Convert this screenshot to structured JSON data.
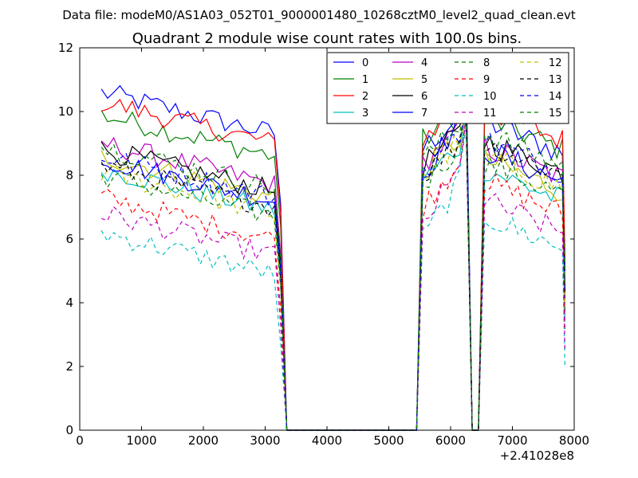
{
  "chart_data": {
    "type": "line",
    "suptitle": "Data file: modeM0/AS1A03_052T01_9000001480_10268cztM0_level2_quad_clean.evt",
    "title": "Quadrant 2 module wise count rates with 100.0s bins.",
    "xlabel": "",
    "ylabel": "",
    "x_offset_label": "+2.41028e8",
    "xlim": [
      0,
      8000
    ],
    "ylim": [
      0,
      12
    ],
    "xticks": [
      0,
      1000,
      2000,
      3000,
      4000,
      5000,
      6000,
      7000,
      8000
    ],
    "yticks": [
      0,
      2,
      4,
      6,
      8,
      10,
      12
    ],
    "grid": false,
    "legend": {
      "position": "top-right",
      "columns": 4
    },
    "segments": [
      {
        "name": "orbit-1",
        "x_start": 350,
        "n": 29,
        "x_step": 100,
        "trailing": [
          [
            3350,
            0.0
          ]
        ]
      },
      {
        "name": "gap-1",
        "points": [
          [
            3450,
            0.0
          ],
          [
            5450,
            0.0
          ]
        ]
      },
      {
        "name": "orbit-2",
        "x_start": 5550,
        "n": 8,
        "x_step": 100,
        "trailing": [
          [
            6350,
            0.0
          ]
        ],
        "leading": [
          [
            5450,
            0.0
          ]
        ]
      },
      {
        "name": "gap-2",
        "points": [
          [
            6450,
            0.0
          ]
        ]
      },
      {
        "name": "orbit-3",
        "x_start": 6450,
        "n": 15,
        "x_step": 100,
        "leading": [
          [
            6450,
            0.0
          ]
        ]
      }
    ],
    "series": [
      {
        "name": "0",
        "color": "#0000ff",
        "dashed": false,
        "level1": 9.6,
        "level2": 8.8,
        "peak": 11.0,
        "level3": 8.5
      },
      {
        "name": "1",
        "color": "#008000",
        "dashed": false,
        "level1": 8.9,
        "level2": 9.1,
        "peak": 10.8,
        "level3": 8.6
      },
      {
        "name": "2",
        "color": "#ff0000",
        "dashed": false,
        "level1": 9.3,
        "level2": 9.2,
        "peak": 10.9,
        "level3": 8.9
      },
      {
        "name": "3",
        "color": "#00bfbf",
        "dashed": false,
        "level1": 7.2,
        "level2": 7.8,
        "peak": 10.0,
        "level3": 7.0
      },
      {
        "name": "4",
        "color": "#bf00bf",
        "dashed": false,
        "level1": 8.0,
        "level2": 8.4,
        "peak": 10.4,
        "level3": 7.7
      },
      {
        "name": "5",
        "color": "#bfbf00",
        "dashed": false,
        "level1": 7.6,
        "level2": 8.1,
        "peak": 10.2,
        "level3": 7.3
      },
      {
        "name": "6",
        "color": "#000000",
        "dashed": false,
        "level1": 7.8,
        "level2": 8.3,
        "peak": 10.3,
        "level3": 7.9
      },
      {
        "name": "7",
        "color": "#0000ff",
        "dashed": false,
        "level1": 7.5,
        "level2": 8.0,
        "peak": 11.4,
        "level3": 7.6
      },
      {
        "name": "8",
        "color": "#008000",
        "dashed": true,
        "level1": 7.0,
        "level2": 7.7,
        "peak": 10.1,
        "level3": 7.2
      },
      {
        "name": "9",
        "color": "#ff0000",
        "dashed": true,
        "level1": 6.3,
        "level2": 7.0,
        "peak": 9.8,
        "level3": 6.6
      },
      {
        "name": "10",
        "color": "#00bfbf",
        "dashed": true,
        "level1": 5.2,
        "level2": 6.0,
        "peak": 9.5,
        "level3": 5.5
      },
      {
        "name": "11",
        "color": "#bf00bf",
        "dashed": true,
        "level1": 5.8,
        "level2": 6.5,
        "peak": 9.7,
        "level3": 6.0
      },
      {
        "name": "12",
        "color": "#bfbf00",
        "dashed": true,
        "level1": 7.1,
        "level2": 7.9,
        "peak": 10.2,
        "level3": 7.4
      },
      {
        "name": "13",
        "color": "#000000",
        "dashed": true,
        "level1": 7.3,
        "level2": 8.0,
        "peak": 10.1,
        "level3": 7.8
      },
      {
        "name": "14",
        "color": "#0000ff",
        "dashed": true,
        "level1": 7.6,
        "level2": 8.2,
        "peak": 10.3,
        "level3": 7.9
      },
      {
        "name": "15",
        "color": "#008000",
        "dashed": true,
        "level1": 7.9,
        "level2": 8.5,
        "peak": 10.5,
        "level3": 8.1
      }
    ]
  }
}
